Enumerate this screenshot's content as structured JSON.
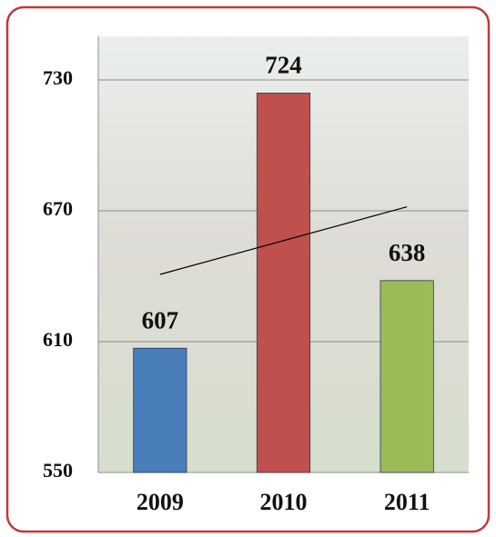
{
  "chart_data": {
    "type": "bar",
    "categories": [
      "2009",
      "2010",
      "2011"
    ],
    "series": [
      {
        "values": [
          607,
          724,
          638
        ],
        "colors": [
          "#4a7ebb",
          "#c0504d",
          "#9bbb59"
        ]
      }
    ],
    "ylim": [
      550,
      750
    ],
    "yticks": [
      550,
      610,
      670,
      730
    ],
    "grid": true,
    "trendline": true
  }
}
